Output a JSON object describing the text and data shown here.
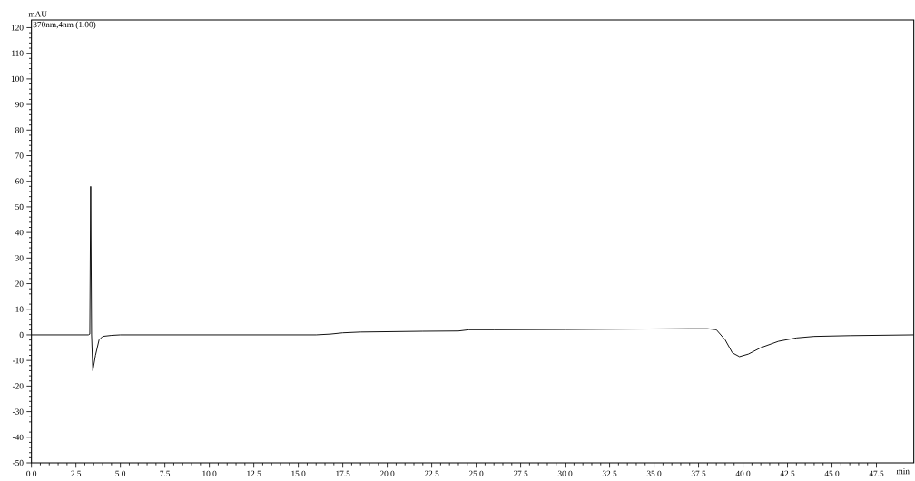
{
  "chart_data": {
    "type": "line",
    "ylabel": "mAU",
    "xlabel": "min",
    "annotations": [
      "370nm,4nm (1.00)"
    ],
    "series": [
      {
        "color": "#000000",
        "x": [
          0,
          3.2,
          3.28,
          3.33,
          3.38,
          3.45,
          3.6,
          3.8,
          4.0,
          4.5,
          5,
          10,
          16,
          16.8,
          17.5,
          18.5,
          22,
          24,
          24.6,
          26,
          30,
          35,
          37,
          38,
          38.5,
          39,
          39.4,
          39.8,
          40.3,
          41,
          42,
          43,
          44,
          46,
          49.6
        ],
        "values": [
          0,
          0,
          0.3,
          58,
          0,
          -14,
          -8,
          -2,
          -0.6,
          -0.2,
          0,
          0,
          0,
          0.3,
          0.8,
          1.1,
          1.4,
          1.5,
          2,
          2,
          2.1,
          2.3,
          2.4,
          2.4,
          2,
          -2,
          -7,
          -8.5,
          -7.5,
          -5,
          -2.5,
          -1.2,
          -0.6,
          -0.3,
          0
        ]
      }
    ],
    "xlim": [
      0,
      49.6
    ],
    "ylim": [
      -50,
      123
    ],
    "xticks": [
      {
        "value": 0,
        "label": "0.0"
      },
      {
        "value": 2.5,
        "label": "2.5"
      },
      {
        "value": 5,
        "label": "5.0"
      },
      {
        "value": 7.5,
        "label": "7.5"
      },
      {
        "value": 10,
        "label": "10.0"
      },
      {
        "value": 12.5,
        "label": "12.5"
      },
      {
        "value": 15,
        "label": "15.0"
      },
      {
        "value": 17.5,
        "label": "17.5"
      },
      {
        "value": 20,
        "label": "20.0"
      },
      {
        "value": 22.5,
        "label": "22.5"
      },
      {
        "value": 25,
        "label": "25.0"
      },
      {
        "value": 27.5,
        "label": "27.5"
      },
      {
        "value": 30,
        "label": "30.0"
      },
      {
        "value": 32.5,
        "label": "32.5"
      },
      {
        "value": 35,
        "label": "35.0"
      },
      {
        "value": 37.5,
        "label": "37.5"
      },
      {
        "value": 40,
        "label": "40.0"
      },
      {
        "value": 42.5,
        "label": "42.5"
      },
      {
        "value": 45,
        "label": "45.0"
      },
      {
        "value": 47.5,
        "label": "47.5"
      }
    ],
    "yticks": [
      -50,
      -40,
      -30,
      -20,
      -10,
      0,
      10,
      20,
      30,
      40,
      50,
      60,
      70,
      80,
      90,
      100,
      110,
      120
    ],
    "marker": "none",
    "line_style": "solid"
  }
}
